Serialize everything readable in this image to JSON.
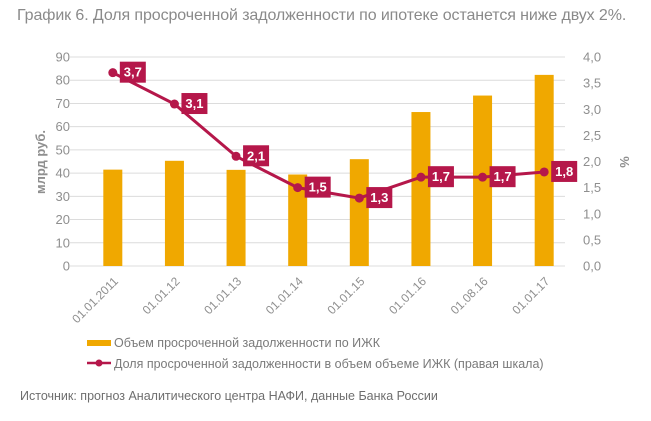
{
  "chart_data": {
    "type": "bar+line",
    "title": "График 6. Доля просроченной задолженности по ипотеке останется ниже двух 2%.",
    "categories": [
      "01.01.2011",
      "01.01.12",
      "01.01.13",
      "01.01.14",
      "01.01.15",
      "01.01.16",
      "01.08.16",
      "01.01.17"
    ],
    "series": [
      {
        "name": "Объем просроченной задолженности по ИЖК",
        "type": "bar",
        "axis": "left",
        "color": "#f0a800",
        "values": [
          41.5,
          45.3,
          41.4,
          39.4,
          46.0,
          66.3,
          73.4,
          82.3
        ]
      },
      {
        "name": "Доля просроченной задолженности в объем объеме ИЖК (правая шкала)",
        "type": "line",
        "axis": "right",
        "color": "#b5174a",
        "values": [
          3.7,
          3.1,
          2.1,
          1.5,
          1.3,
          1.7,
          1.7,
          1.8
        ],
        "data_labels": [
          "3,7",
          "3,1",
          "2,1",
          "1,5",
          "1,3",
          "1,7",
          "1,7",
          "1,8"
        ]
      }
    ],
    "left_axis": {
      "label": "млрд руб.",
      "range": [
        0,
        90
      ],
      "ticks": [
        "0",
        "10",
        "20",
        "30",
        "40",
        "50",
        "60",
        "70",
        "80",
        "90"
      ]
    },
    "right_axis": {
      "label": "%",
      "range": [
        0,
        4
      ],
      "ticks": [
        "0,0",
        "0,5",
        "1,0",
        "1,5",
        "2,0",
        "2,5",
        "3,0",
        "3,5",
        "4,0"
      ]
    },
    "grid": true,
    "legend_position": "bottom"
  },
  "source": "Источник: прогноз Аналитического центра НАФИ, данные Банка России"
}
